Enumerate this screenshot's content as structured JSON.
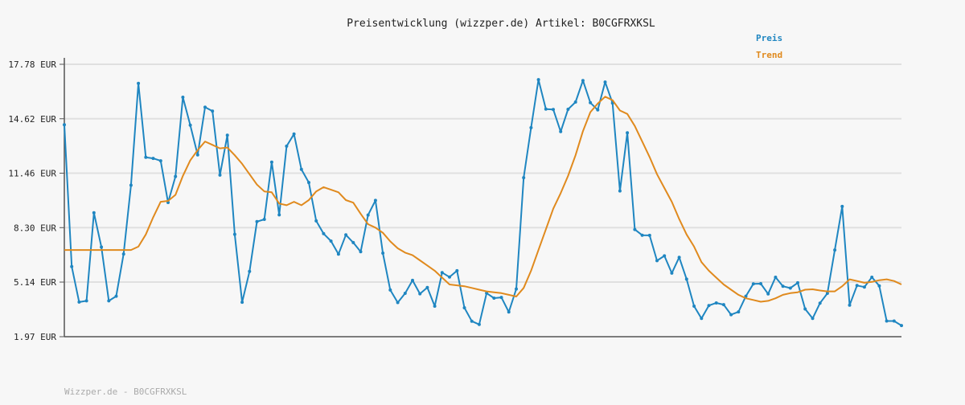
{
  "chart_data": {
    "type": "line",
    "title": "Preisentwicklung (wizzper.de) Artikel: B0CGFRXKSL",
    "footer": "Wizzper.de - B0CGFRXKSL",
    "ylim": [
      1.97,
      17.78
    ],
    "y_ticks": [
      "17.78 EUR",
      "14.62 EUR",
      "11.46 EUR",
      "8.30 EUR",
      "5.14 EUR",
      "1.97 EUR"
    ],
    "y_tick_values": [
      17.78,
      14.62,
      11.46,
      8.3,
      5.14,
      1.97
    ],
    "grid": true,
    "legend_position": "top-right",
    "series": [
      {
        "name": "Preis",
        "color": "#1f86c1",
        "values": [
          14.27,
          6.04,
          3.98,
          4.05,
          9.16,
          7.17,
          4.05,
          4.32,
          6.77,
          10.76,
          16.67,
          12.38,
          12.32,
          12.18,
          9.76,
          11.27,
          15.87,
          14.25,
          12.52,
          15.29,
          15.06,
          11.35,
          13.66,
          7.91,
          3.97,
          5.76,
          8.65,
          8.78,
          12.1,
          9.04,
          13.03,
          13.73,
          11.68,
          10.92,
          8.69,
          7.95,
          7.52,
          6.76,
          7.88,
          7.43,
          6.9,
          9.03,
          9.88,
          6.82,
          4.68,
          3.95,
          4.49,
          5.24,
          4.46,
          4.83,
          3.74,
          5.69,
          5.43,
          5.8,
          3.65,
          2.87,
          2.68,
          4.5,
          4.21,
          4.25,
          3.4,
          4.74,
          11.2,
          14.1,
          16.89,
          15.18,
          15.16,
          13.87,
          15.17,
          15.59,
          16.84,
          15.55,
          15.13,
          16.75,
          15.53,
          10.43,
          13.8,
          8.19,
          7.86,
          7.85,
          6.38,
          6.66,
          5.66,
          6.58,
          5.31,
          3.74,
          3.03,
          3.78,
          3.93,
          3.83,
          3.25,
          3.41,
          4.32,
          5.04,
          5.05,
          4.45,
          5.42,
          4.9,
          4.79,
          5.1,
          3.58,
          3.03,
          3.92,
          4.49,
          7.0,
          9.53,
          3.8,
          4.94,
          4.85,
          5.42,
          4.92,
          2.88,
          2.88,
          2.62
        ]
      },
      {
        "name": "Trend",
        "color": "#e08a1e",
        "values": [
          7.0,
          7.0,
          7.0,
          7.0,
          7.0,
          7.0,
          7.0,
          7.0,
          7.0,
          7.0,
          7.2,
          7.9,
          8.9,
          9.8,
          9.85,
          10.2,
          11.3,
          12.2,
          12.8,
          13.3,
          13.1,
          12.9,
          12.95,
          12.5,
          12.0,
          11.4,
          10.8,
          10.4,
          10.35,
          9.7,
          9.6,
          9.8,
          9.6,
          9.9,
          10.4,
          10.65,
          10.5,
          10.35,
          9.9,
          9.75,
          9.1,
          8.5,
          8.3,
          8.0,
          7.5,
          7.1,
          6.85,
          6.7,
          6.4,
          6.1,
          5.8,
          5.4,
          5.0,
          4.95,
          4.9,
          4.8,
          4.7,
          4.6,
          4.55,
          4.5,
          4.4,
          4.3,
          4.8,
          5.8,
          7.0,
          8.2,
          9.4,
          10.3,
          11.3,
          12.5,
          13.9,
          15.0,
          15.5,
          15.9,
          15.7,
          15.1,
          14.9,
          14.2,
          13.3,
          12.4,
          11.4,
          10.6,
          9.8,
          8.8,
          7.9,
          7.2,
          6.3,
          5.8,
          5.4,
          5.0,
          4.7,
          4.4,
          4.2,
          4.1,
          4.0,
          4.05,
          4.2,
          4.4,
          4.5,
          4.55,
          4.7,
          4.72,
          4.65,
          4.6,
          4.6,
          4.9,
          5.3,
          5.2,
          5.1,
          5.15,
          5.25,
          5.3,
          5.2,
          5.0
        ]
      }
    ]
  }
}
